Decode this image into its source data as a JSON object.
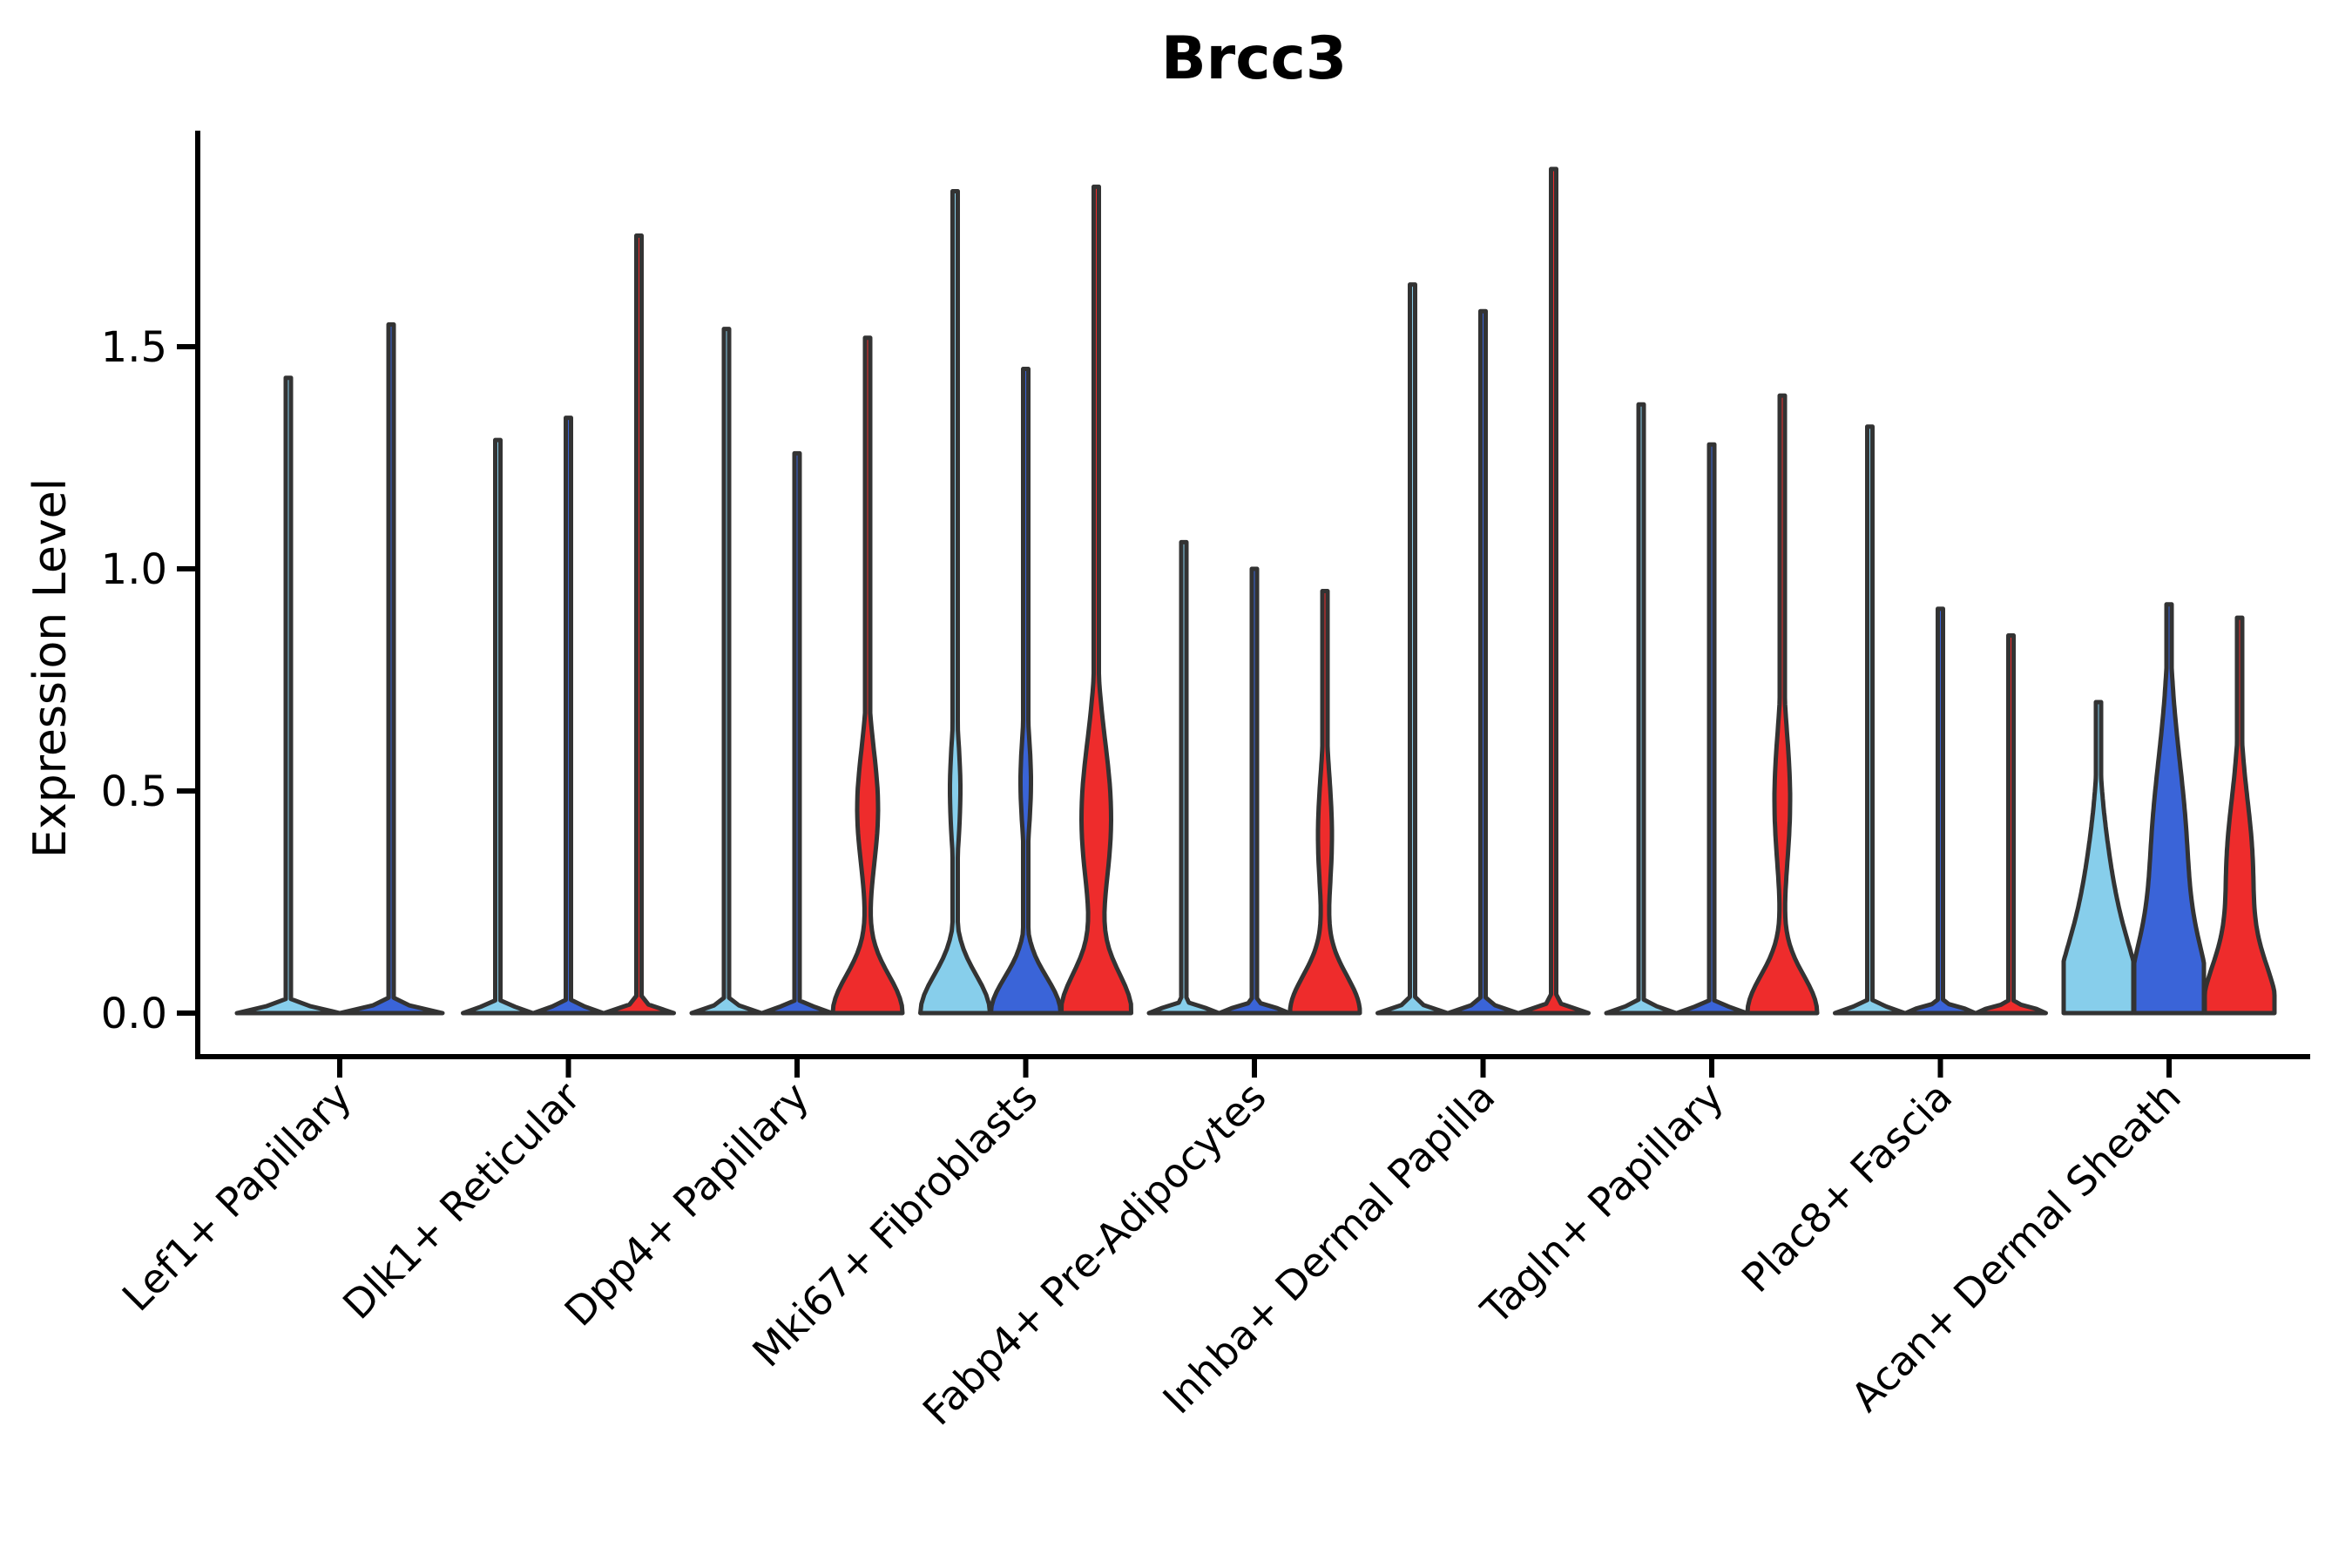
{
  "chart_data": {
    "type": "violin",
    "title": "Brcc3",
    "ylabel": "Expression Level",
    "xlabel": "",
    "grid": false,
    "legend": "none",
    "ylim": [
      -0.09,
      2.02
    ],
    "ytick_labels": [
      "0.0",
      "0.5",
      "1.0",
      "1.5"
    ],
    "ytick_values": [
      0.0,
      0.5,
      1.0,
      1.5
    ],
    "label_rotation_deg": 45,
    "palette": {
      "light_blue": "#87CEEB",
      "dark_blue": "#3A64D8",
      "red": "#EE2C2C",
      "outline": "#333333",
      "axis": "#000000"
    },
    "categories": [
      {
        "label": "Lef1+ Papillary",
        "violins": [
          {
            "color": "light_blue",
            "max": 1.43
          },
          {
            "color": "dark_blue",
            "max": 1.55
          }
        ]
      },
      {
        "label": "Dlk1+ Reticular",
        "violins": [
          {
            "color": "light_blue",
            "max": 1.29
          },
          {
            "color": "dark_blue",
            "max": 1.34
          },
          {
            "color": "red",
            "max": 1.75
          }
        ]
      },
      {
        "label": "Dpp4+ Papillary",
        "violins": [
          {
            "color": "light_blue",
            "max": 1.54
          },
          {
            "color": "dark_blue",
            "max": 1.26
          },
          {
            "color": "red",
            "max": 1.52,
            "body": {
              "base_sigma": 0.085,
              "bulge_amp": 12,
              "bulge_center": 0.46,
              "bulge_sigma": 0.13
            }
          }
        ]
      },
      {
        "label": "Mki67+ Fibroblasts",
        "violins": [
          {
            "color": "light_blue",
            "max": 1.85,
            "body": {
              "base_sigma": 0.085,
              "bulge_amp": 6,
              "bulge_center": 0.5,
              "bulge_sigma": 0.12
            }
          },
          {
            "color": "dark_blue",
            "max": 1.45,
            "body": {
              "base_sigma": 0.08,
              "bulge_amp": 6,
              "bulge_center": 0.52,
              "bulge_sigma": 0.11
            }
          },
          {
            "color": "red",
            "max": 1.86,
            "body": {
              "base_sigma": 0.09,
              "bulge_amp": 17,
              "bulge_center": 0.44,
              "bulge_sigma": 0.17
            }
          }
        ]
      },
      {
        "label": "Fabp4+ Pre-Adipocytes",
        "violins": [
          {
            "color": "light_blue",
            "max": 1.06
          },
          {
            "color": "dark_blue",
            "max": 1.0
          },
          {
            "color": "red",
            "max": 0.95,
            "body": {
              "base_sigma": 0.085,
              "bulge_amp": 8,
              "bulge_center": 0.4,
              "bulge_sigma": 0.14
            }
          }
        ]
      },
      {
        "label": "Inhba+ Dermal Papilla",
        "violins": [
          {
            "color": "light_blue",
            "max": 1.64
          },
          {
            "color": "dark_blue",
            "max": 1.58
          },
          {
            "color": "red",
            "max": 1.9
          }
        ]
      },
      {
        "label": "Tagln+ Papillary",
        "violins": [
          {
            "color": "light_blue",
            "max": 1.37
          },
          {
            "color": "dark_blue",
            "max": 1.28
          },
          {
            "color": "red",
            "max": 1.39,
            "body": {
              "base_sigma": 0.085,
              "bulge_amp": 9,
              "bulge_center": 0.48,
              "bulge_sigma": 0.15
            }
          }
        ]
      },
      {
        "label": "Plac8+ Fascia",
        "violins": [
          {
            "color": "light_blue",
            "max": 1.32
          },
          {
            "color": "dark_blue",
            "max": 0.91
          },
          {
            "color": "red",
            "max": 0.85
          }
        ]
      },
      {
        "label": "Acan+ Dermal Sheath",
        "violins": [
          {
            "color": "light_blue",
            "max": 0.7,
            "body": {
              "base_sigma": 0.13,
              "bulge_amp": 16,
              "bulge_center": 0.22,
              "bulge_sigma": 0.17
            }
          },
          {
            "color": "dark_blue",
            "max": 0.92,
            "body": {
              "base_sigma": 0.14,
              "bulge_amp": 20,
              "bulge_center": 0.35,
              "bulge_sigma": 0.22
            }
          },
          {
            "color": "red",
            "max": 0.89,
            "body": {
              "base_sigma": 0.11,
              "bulge_amp": 15,
              "bulge_center": 0.32,
              "bulge_sigma": 0.16
            }
          }
        ]
      }
    ]
  }
}
